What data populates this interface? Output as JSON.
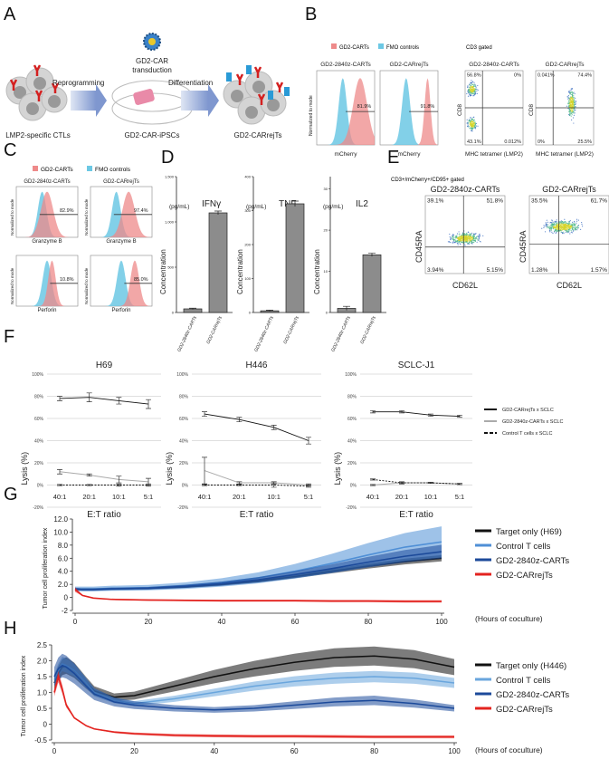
{
  "panel_labels": {
    "A": "A",
    "B": "B",
    "C": "C",
    "D": "D",
    "E": "E",
    "F": "F",
    "G": "G",
    "H": "H"
  },
  "panel_a": {
    "steps": [
      "LMP2-specific CTLs",
      "GD2-CAR-iPSCs",
      "GD2-CARrejTs"
    ],
    "arrow_1": "Reprogramming",
    "arrow_2": "Differentiation",
    "transduction_line1": "GD2-CAR",
    "transduction_line2": "transduction"
  },
  "hist_legend": {
    "car": "GD2-CARTs",
    "fmo": "FMO controls",
    "car_color": "#ee8a8a",
    "fmo_color": "#6cc8e4"
  },
  "panel_b": {
    "hist_ylabel": "Normalized to mode",
    "histograms": [
      {
        "title": "GD2-2840z-CARTs",
        "xlabel": "mCherry",
        "pct": "81.9%"
      },
      {
        "title": "GD2-CARrejTs",
        "xlabel": "mCherry",
        "pct": "91.8%"
      }
    ],
    "gate": "CD3 gated",
    "scatter_xlabel": "MHC tetramer (LMP2)",
    "scatter_ylabel": "CD8",
    "scatters": [
      {
        "title": "GD2-2840z-CARTs",
        "q": [
          "56.8%",
          "0%",
          "43.1%",
          "0.012%"
        ]
      },
      {
        "title": "GD2-CARrejTs",
        "q": [
          "0.041%",
          "74.4%",
          "0%",
          "25.5%"
        ]
      }
    ]
  },
  "panel_c": {
    "hist_ylabel": "Normalized to mode",
    "titles": [
      "GD2-2840z-CARTs",
      "GD2-CARrejTs"
    ],
    "rows": [
      {
        "xlabel": "Granzyme B",
        "pct": [
          "82.9%",
          "97.4%"
        ]
      },
      {
        "xlabel": "Perforin",
        "pct": [
          "10.8%",
          "85.0%"
        ]
      }
    ]
  },
  "panel_e": {
    "gate": "CD3+/mCherry+/CD95+ gated",
    "xlabel": "CD62L",
    "ylabel": "CD45RA",
    "scatters": [
      {
        "title": "GD2-2840z-CARTs",
        "q": [
          "39.1%",
          "51.8%",
          "3.94%",
          "5.15%"
        ]
      },
      {
        "title": "GD2-CARrejTs",
        "q": [
          "35.5%",
          "61.7%",
          "1.28%",
          "1.57%"
        ]
      }
    ]
  },
  "chart_data": [
    {
      "id": "D",
      "type": "bar",
      "ylabel": "Concentration",
      "unit": "(pg/mL)",
      "categories": [
        "GD2-2840z-CARTs",
        "GD2-CARrejTs"
      ],
      "bar_color": "#8c8c8c",
      "charts": [
        {
          "title": "IFNγ",
          "values": [
            40,
            1100
          ],
          "errors": [
            8,
            20
          ],
          "ylim": [
            0,
            1500
          ],
          "ticks": [
            "0",
            "500",
            "1,000",
            "1,500"
          ],
          "tick_values": [
            0,
            500,
            1000,
            1500
          ]
        },
        {
          "title": "TNF",
          "values": [
            5,
            320
          ],
          "errors": [
            2,
            8
          ],
          "ylim": [
            0,
            400
          ],
          "ticks": [
            "0",
            "100",
            "200",
            "300",
            "400"
          ],
          "tick_values": [
            0,
            100,
            200,
            300,
            400
          ]
        },
        {
          "title": "IL2",
          "values": [
            1,
            14
          ],
          "errors": [
            0.5,
            0.4
          ],
          "ylim": [
            0,
            33
          ],
          "ticks": [
            "0",
            "10",
            "20",
            "30"
          ],
          "tick_values": [
            0,
            10,
            20,
            30
          ]
        }
      ]
    },
    {
      "id": "F",
      "type": "line",
      "xlabel": "E:T ratio",
      "ylabel": "Lysis (%)",
      "categories": [
        "40:1",
        "20:1",
        "10:1",
        "5:1"
      ],
      "ylim": [
        -20,
        100
      ],
      "yticks": [
        "-20%",
        "0%",
        "20%",
        "40%",
        "60%",
        "80%",
        "100%"
      ],
      "ytick_values": [
        -20,
        0,
        20,
        40,
        60,
        80,
        100
      ],
      "grid": true,
      "legend_position": "right",
      "legend": [
        {
          "name": "GD2-CARrejTs x SCLC",
          "color": "#111111",
          "dash": false
        },
        {
          "name": "GD2-2840z-CARTs x SCLC",
          "color": "#aaaaaa",
          "dash": false
        },
        {
          "name": "Control T cells x SCLC",
          "color": "#111111",
          "dash": true
        }
      ],
      "charts": [
        {
          "title": "H69",
          "series": [
            [
              78,
              79,
              76,
              73
            ],
            [
              12,
              9,
              5,
              3
            ],
            [
              0,
              0,
              0,
              0
            ]
          ],
          "errors": [
            [
              2,
              4,
              3,
              4
            ],
            [
              2,
              1,
              3,
              3
            ],
            [
              0.5,
              0.5,
              1,
              1
            ]
          ]
        },
        {
          "title": "H446",
          "series": [
            [
              64,
              59,
              52,
              40
            ],
            [
              13,
              2,
              2,
              0
            ],
            [
              0,
              0,
              0,
              -1
            ]
          ],
          "errors": [
            [
              2,
              2,
              2,
              3
            ],
            [
              12,
              1,
              1,
              1
            ],
            [
              0.5,
              0.5,
              2,
              1
            ]
          ]
        },
        {
          "title": "SCLC-J1",
          "series": [
            [
              66,
              66,
              63,
              62
            ],
            [
              0,
              2,
              2,
              1
            ],
            [
              5,
              2,
              2,
              1
            ]
          ],
          "errors": [
            [
              1,
              1,
              1,
              1
            ],
            [
              0.5,
              1,
              0.5,
              0.5
            ],
            [
              0.5,
              0.5,
              0.5,
              0.5
            ]
          ]
        }
      ]
    },
    {
      "id": "G",
      "type": "line",
      "ylabel": "Tumor cell proliferation index",
      "xlabel": "(Hours of coculture)",
      "xlim": [
        0,
        100
      ],
      "xticks": [
        "0",
        "20",
        "40",
        "60",
        "80",
        "100"
      ],
      "xtick_values": [
        0,
        20,
        40,
        60,
        80,
        100
      ],
      "ylim": [
        -2,
        12
      ],
      "yticks": [
        "-2",
        "0",
        "2.0",
        "4.0",
        "6.0",
        "8.0",
        "10.0",
        "12.0"
      ],
      "ytick_values": [
        -2,
        0,
        2,
        4,
        6,
        8,
        10,
        12
      ],
      "legend_position": "right",
      "x": [
        0,
        2,
        5,
        10,
        20,
        30,
        40,
        50,
        60,
        70,
        80,
        90,
        100
      ],
      "series": [
        {
          "name": "Target only (H69)",
          "color": "#111111",
          "values": [
            1.2,
            1.3,
            1.3,
            1.3,
            1.4,
            1.6,
            2.0,
            2.5,
            3.2,
            4.0,
            4.8,
            5.5,
            6.0
          ],
          "error_frac": 0.08
        },
        {
          "name": "Control T cells",
          "color": "#4f8fd6",
          "values": [
            1.3,
            1.3,
            1.3,
            1.4,
            1.5,
            1.8,
            2.3,
            3.0,
            4.0,
            5.2,
            6.5,
            7.7,
            8.5
          ],
          "error_frac": 0.28
        },
        {
          "name": "GD2-2840z-CARTs",
          "color": "#1c4a9a",
          "values": [
            1.3,
            1.2,
            1.2,
            1.3,
            1.4,
            1.7,
            2.1,
            2.7,
            3.5,
            4.4,
            5.4,
            6.3,
            7.0
          ],
          "error_frac": 0.15
        },
        {
          "name": "GD2-CARrejTs",
          "color": "#e3231f",
          "values": [
            1.2,
            0.3,
            -0.1,
            -0.3,
            -0.4,
            -0.45,
            -0.5,
            -0.5,
            -0.5,
            -0.55,
            -0.55,
            -0.6,
            -0.6
          ],
          "error_frac": 0.3
        }
      ]
    },
    {
      "id": "H",
      "type": "line",
      "ylabel": "Tumor cell proliferation index",
      "xlabel": "(Hours of coculture)",
      "xlim": [
        0,
        100
      ],
      "xticks": [
        "0",
        "20",
        "40",
        "60",
        "80",
        "100"
      ],
      "xtick_values": [
        0,
        20,
        40,
        60,
        80,
        100
      ],
      "ylim": [
        -0.5,
        2.5
      ],
      "yticks": [
        "-0.5",
        "0",
        "0.5",
        "1.0",
        "1.5",
        "2.0",
        "2.5"
      ],
      "ytick_values": [
        -0.5,
        0,
        0.5,
        1,
        1.5,
        2,
        2.5
      ],
      "legend_position": "right",
      "x": [
        0,
        1,
        2,
        3,
        5,
        8,
        10,
        15,
        20,
        30,
        40,
        50,
        60,
        70,
        80,
        90,
        100
      ],
      "series": [
        {
          "name": "Target only (H446)",
          "color": "#111111",
          "values": [
            1.3,
            1.6,
            1.8,
            1.85,
            1.7,
            1.3,
            1.05,
            0.85,
            0.9,
            1.2,
            1.5,
            1.75,
            1.95,
            2.1,
            2.15,
            2.05,
            1.8
          ],
          "error_frac": 0.14
        },
        {
          "name": "Control T cells",
          "color": "#6aa6dd",
          "values": [
            1.4,
            1.7,
            1.9,
            1.85,
            1.7,
            1.3,
            1.0,
            0.75,
            0.65,
            0.8,
            1.0,
            1.2,
            1.35,
            1.45,
            1.5,
            1.45,
            1.3
          ],
          "error_frac": 0.12
        },
        {
          "name": "GD2-2840z-CARTs",
          "color": "#1c4a9a",
          "values": [
            1.5,
            1.75,
            1.85,
            1.8,
            1.6,
            1.2,
            0.95,
            0.7,
            0.6,
            0.5,
            0.45,
            0.5,
            0.6,
            0.7,
            0.75,
            0.65,
            0.5
          ],
          "error_frac": 0.2
        },
        {
          "name": "GD2-CARrejTs",
          "color": "#e3231f",
          "values": [
            1.0,
            1.5,
            1.1,
            0.6,
            0.2,
            -0.05,
            -0.15,
            -0.25,
            -0.3,
            -0.35,
            -0.37,
            -0.38,
            -0.38,
            -0.39,
            -0.4,
            -0.4,
            -0.4
          ],
          "error_frac": 0.12
        }
      ]
    }
  ]
}
